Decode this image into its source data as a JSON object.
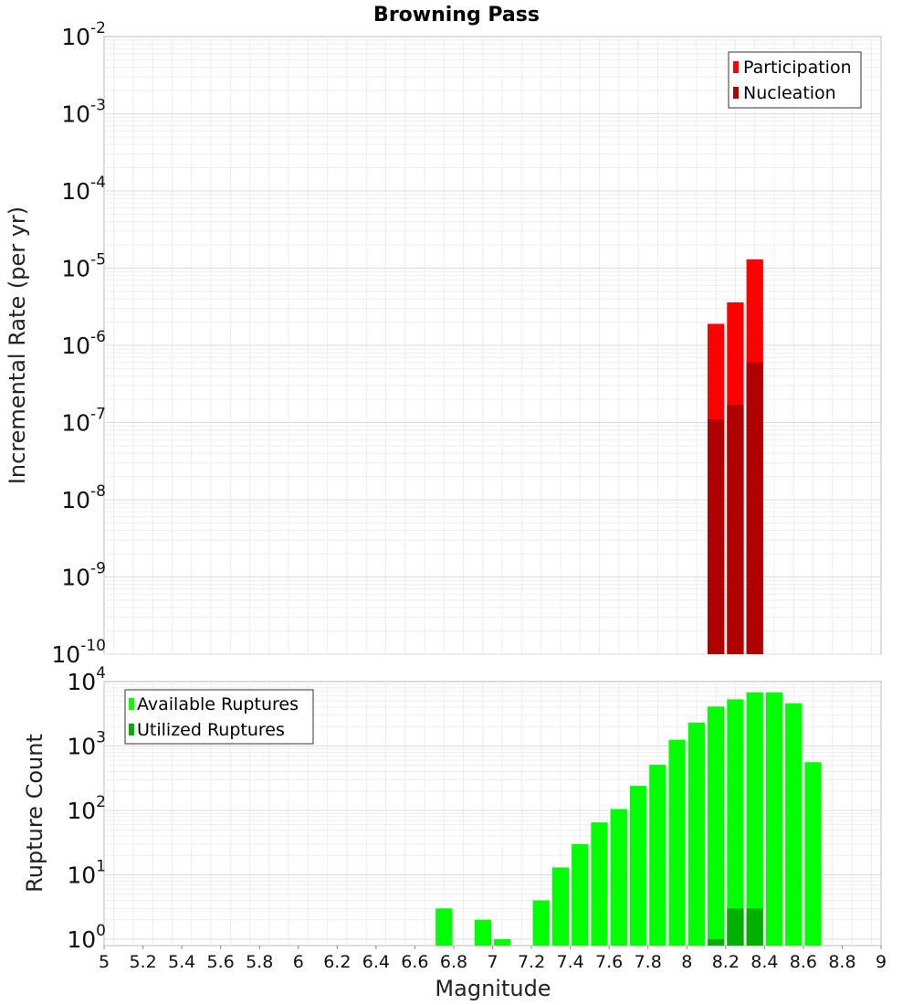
{
  "chart_data": [
    {
      "type": "bar",
      "title": "Browning Pass",
      "xlabel": "",
      "ylabel": "Incremental Rate (per yr)",
      "yscale": "log",
      "xlim": [
        5,
        9
      ],
      "ylim_exponents": [
        -10,
        -2
      ],
      "y_tick_labels": [
        "10",
        "10",
        "10",
        "10",
        "10",
        "10",
        "10",
        "10",
        "10"
      ],
      "y_tick_exponents": [
        "-10",
        "-9",
        "-8",
        "-7",
        "-6",
        "-5",
        "-4",
        "-3",
        "-2"
      ],
      "bar_width": 0.1,
      "legend_position": "top-right",
      "series": [
        {
          "name": "Participation",
          "color": "#ff0000",
          "x": [
            8.15,
            8.25,
            8.35
          ],
          "values": [
            1.9e-06,
            3.6e-06,
            1.3e-05
          ]
        },
        {
          "name": "Nucleation",
          "color": "#b00000",
          "x": [
            8.15,
            8.25,
            8.35
          ],
          "values": [
            1.1e-07,
            1.7e-07,
            6e-07
          ]
        }
      ]
    },
    {
      "type": "bar",
      "title": "",
      "xlabel": "Magnitude",
      "ylabel": "Rupture Count",
      "yscale": "log",
      "xlim": [
        5,
        9
      ],
      "ylim_exponents": [
        -0.1,
        4
      ],
      "x_tick_labels": [
        "5",
        "5.2",
        "5.4",
        "5.6",
        "5.8",
        "6",
        "6.2",
        "6.4",
        "6.6",
        "6.8",
        "7",
        "7.2",
        "7.4",
        "7.6",
        "7.8",
        "8",
        "8.2",
        "8.4",
        "8.6",
        "8.8",
        "9"
      ],
      "y_tick_labels": [
        "10",
        "10",
        "10",
        "10",
        "10"
      ],
      "y_tick_exponents": [
        "0",
        "1",
        "2",
        "3",
        "4"
      ],
      "bar_width": 0.1,
      "legend_position": "top-left",
      "series": [
        {
          "name": "Available Ruptures",
          "color": "#00ff00",
          "x": [
            6.75,
            6.95,
            7.05,
            7.25,
            7.35,
            7.45,
            7.55,
            7.65,
            7.75,
            7.85,
            7.95,
            8.05,
            8.15,
            8.25,
            8.35,
            8.45,
            8.55,
            8.65
          ],
          "values": [
            3,
            2,
            1,
            4,
            13,
            30,
            65,
            105,
            240,
            510,
            1250,
            2300,
            4100,
            5300,
            6800,
            6800,
            4600,
            560
          ]
        },
        {
          "name": "Utilized Ruptures",
          "color": "#00b000",
          "x": [
            8.15,
            8.25,
            8.35
          ],
          "values": [
            1,
            3,
            3
          ]
        }
      ]
    }
  ]
}
